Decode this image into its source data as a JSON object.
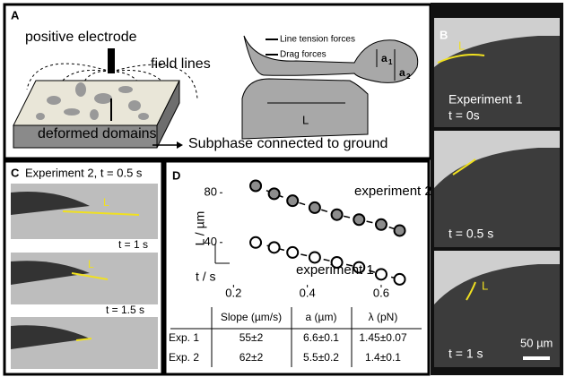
{
  "panel_a": {
    "label": "A",
    "electrode": "positive electrode",
    "field_lines": "field lines",
    "domains": "deformed domains",
    "ground": "Subphase connected to ground",
    "line_tension": "Line tension forces",
    "drag": "Drag forces",
    "a1": "a",
    "a1_sub": "1",
    "a2": "a",
    "a2_sub": "2",
    "length": "L"
  },
  "panel_b": {
    "label": "B",
    "length_label": "L",
    "experiment": "Experiment 1",
    "times": [
      "t = 0s",
      "t = 0.5 s",
      "t = 1 s"
    ],
    "scale_bar": "50 µm"
  },
  "panel_c": {
    "label": "C",
    "title": "Experiment 2, t = 0.5 s",
    "length_label": "L",
    "times": [
      "t = 1 s",
      "t = 1.5 s"
    ]
  },
  "panel_d": {
    "label": "D"
  },
  "chart_data": {
    "type": "scatter",
    "x_label": "t / s",
    "y_label": "L / µm",
    "x": [
      0.26,
      0.31,
      0.36,
      0.42,
      0.48,
      0.54,
      0.6,
      0.65
    ],
    "series": [
      {
        "name": "experiment 2",
        "color": "#8c8c8c",
        "values": [
          85.6,
          79.2,
          73.6,
          68,
          62.4,
          58.4,
          54.4,
          49.6
        ]
      },
      {
        "name": "experiment 1",
        "color": "#ffffff",
        "values": [
          40,
          36,
          32,
          28,
          24,
          20,
          14.4,
          10.4
        ]
      }
    ],
    "xlim": [
      0.17,
      0.69
    ],
    "ylim": [
      6,
      91
    ],
    "xticks": [
      0.2,
      0.4,
      0.6
    ],
    "yticks": [
      40,
      80
    ]
  },
  "table": {
    "header": [
      "Slope (µm/s)",
      "a (µm)",
      "λ (pN)"
    ],
    "rows": [
      [
        "Exp. 1",
        "55±2",
        "6.6±0.1",
        "1.45±0.07"
      ],
      [
        "Exp. 2",
        "62±2",
        "5.5±0.2",
        "1.4±0.1"
      ]
    ]
  }
}
